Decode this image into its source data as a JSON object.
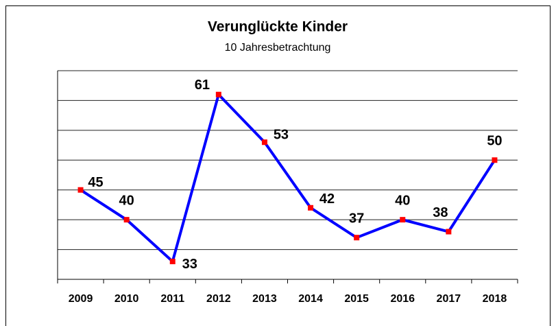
{
  "chart_data": {
    "type": "line",
    "title": "Verunglückte Kinder",
    "subtitle": "10 Jahresbetrachtung",
    "categories": [
      "2009",
      "2010",
      "2011",
      "2012",
      "2013",
      "2014",
      "2015",
      "2016",
      "2017",
      "2018"
    ],
    "series": [
      {
        "color": "#0000ff",
        "marker_color": "#ff0000",
        "values": [
          45,
          40,
          33,
          61,
          53,
          42,
          37,
          40,
          38,
          50
        ]
      }
    ],
    "ylim": [
      30,
      65
    ],
    "yticks": [
      30,
      35,
      40,
      45,
      50,
      55,
      60,
      65
    ],
    "grid": true
  }
}
